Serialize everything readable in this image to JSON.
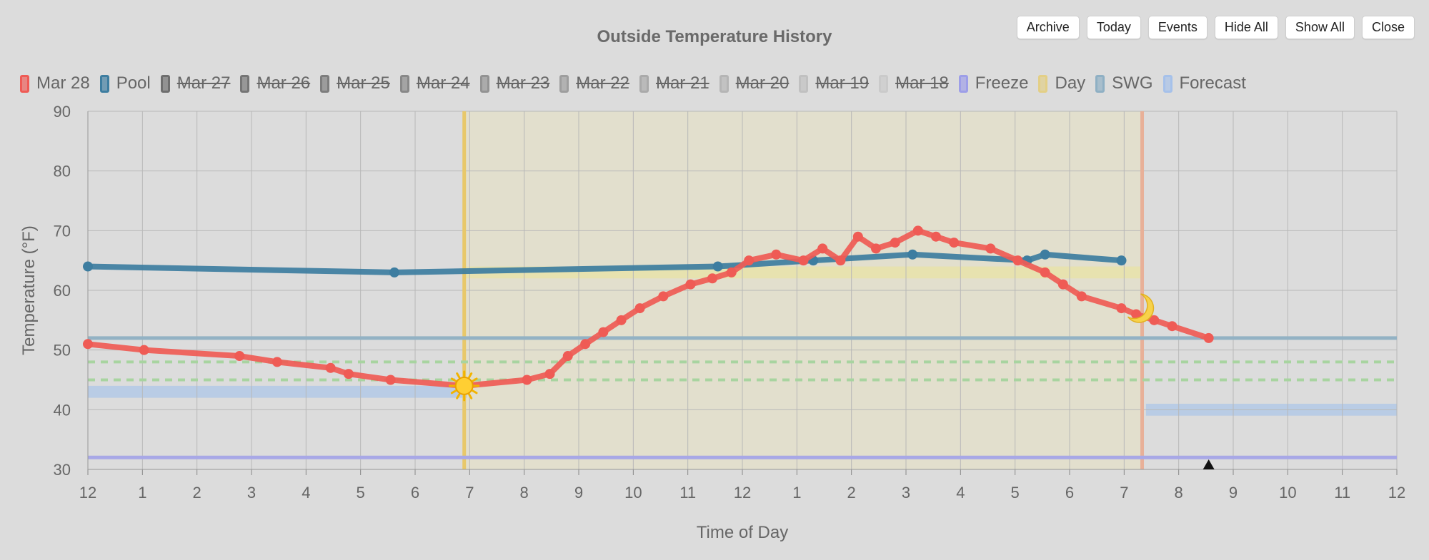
{
  "title": "Outside Temperature History",
  "buttons": [
    "Archive",
    "Today",
    "Events",
    "Hide All",
    "Show All",
    "Close"
  ],
  "legend": [
    {
      "label": "Mar 28",
      "color": "#ef5b55",
      "hidden": false
    },
    {
      "label": "Pool",
      "color": "#3d7da0",
      "hidden": false
    },
    {
      "label": "Mar 27",
      "color": "#6e6e6e",
      "hidden": true
    },
    {
      "label": "Mar 26",
      "color": "#757575",
      "hidden": true
    },
    {
      "label": "Mar 25",
      "color": "#7d7d7d",
      "hidden": true
    },
    {
      "label": "Mar 24",
      "color": "#888888",
      "hidden": true
    },
    {
      "label": "Mar 23",
      "color": "#939393",
      "hidden": true
    },
    {
      "label": "Mar 22",
      "color": "#9e9e9e",
      "hidden": true
    },
    {
      "label": "Mar 21",
      "color": "#aaaaaa",
      "hidden": true
    },
    {
      "label": "Mar 20",
      "color": "#b5b5b5",
      "hidden": true
    },
    {
      "label": "Mar 19",
      "color": "#c0c0c0",
      "hidden": true
    },
    {
      "label": "Mar 18",
      "color": "#cacaca",
      "hidden": true
    },
    {
      "label": "Freeze",
      "color": "#9d9ee8",
      "hidden": false
    },
    {
      "label": "Day",
      "color": "#e3cf86",
      "hidden": false
    },
    {
      "label": "SWG",
      "color": "#8fb0c4",
      "hidden": false
    },
    {
      "label": "Forecast",
      "color": "#a6c1ea",
      "hidden": false
    }
  ],
  "chart_data": {
    "type": "line",
    "xlabel": "Time of Day",
    "ylabel": "Temperature (°F)",
    "xlim": [
      0,
      24
    ],
    "ylim": [
      30,
      90
    ],
    "yticks": [
      30,
      40,
      50,
      60,
      70,
      80,
      90
    ],
    "xtick_labels": [
      "12",
      "1",
      "2",
      "3",
      "4",
      "5",
      "6",
      "7",
      "8",
      "9",
      "10",
      "11",
      "12",
      "1",
      "2",
      "3",
      "4",
      "5",
      "6",
      "7",
      "8",
      "9",
      "10",
      "11",
      "12"
    ],
    "series": [
      {
        "name": "Mar 28",
        "color": "#ef5b55",
        "x": [
          0,
          1.03,
          2.78,
          3.47,
          4.45,
          4.78,
          5.55,
          6.9,
          8.05,
          8.47,
          8.8,
          9.12,
          9.45,
          9.78,
          10.12,
          10.55,
          11.05,
          11.45,
          11.8,
          12.12,
          12.62,
          13.12,
          13.47,
          13.8,
          14.12,
          14.45,
          14.8,
          15.22,
          15.55,
          15.88,
          16.55,
          17.05,
          17.55,
          17.88,
          18.22,
          18.95,
          19.22,
          19.55,
          19.88,
          20.55
        ],
        "y": [
          51,
          50,
          49,
          48,
          47,
          46,
          45,
          44,
          45,
          46,
          49,
          51,
          53,
          55,
          57,
          59,
          61,
          62,
          63,
          65,
          66,
          65,
          67,
          65,
          69,
          67,
          68,
          70,
          69,
          68,
          67,
          65,
          63,
          61,
          59,
          57,
          56,
          55,
          54,
          52
        ]
      },
      {
        "name": "Pool",
        "color": "#3d7da0",
        "x": [
          0,
          5.62,
          11.55,
          13.3,
          15.12,
          17.22,
          17.55,
          18.95
        ],
        "y": [
          64,
          63,
          64,
          65,
          66,
          65,
          66,
          65
        ]
      }
    ],
    "reference_lines": {
      "freeze": 32,
      "swg": 52,
      "dashed_green": [
        48,
        45
      ]
    },
    "forecast_bands": [
      {
        "x_from": 0,
        "x_to": 6.95,
        "y_from": 42,
        "y_to": 44
      },
      {
        "x_from": 19.4,
        "x_to": 24,
        "y_from": 39,
        "y_to": 41
      }
    ],
    "day_region": {
      "sunrise": 6.9,
      "sunset": 19.33
    },
    "day_band": {
      "y_from": 62,
      "y_to": 64
    },
    "marker": {
      "x": 20.55
    }
  }
}
